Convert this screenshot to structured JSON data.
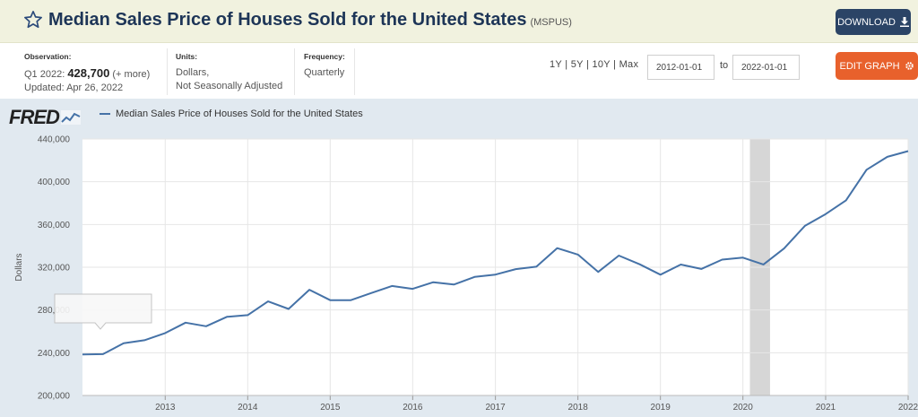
{
  "header": {
    "title": "Median Sales Price of Houses Sold for the United States",
    "series_id": "(MSPUS)",
    "download_label": "DOWNLOAD"
  },
  "observation": {
    "label": "Observation:",
    "period": "Q1 2022:",
    "value": "428,700",
    "more": "(+ more)",
    "updated": "Updated: Apr 26, 2022"
  },
  "units": {
    "label": "Units:",
    "line1": "Dollars,",
    "line2": "Not Seasonally Adjusted"
  },
  "frequency": {
    "label": "Frequency:",
    "value": "Quarterly"
  },
  "range": {
    "links": "1Y | 5Y | 10Y | Max",
    "start": "2012-01-01",
    "to_label": "to",
    "end": "2022-01-01",
    "edit_label": "EDIT GRAPH"
  },
  "chart": {
    "logo_text": "FRED",
    "legend_label": "Median Sales Price of Houses Sold for the United States"
  },
  "colors": {
    "series": "#4572a7",
    "download": "#2b4466",
    "edit": "#e8612c",
    "recession": "#d6d6d6"
  },
  "icons": {
    "favorite": "star-icon",
    "download": "download-icon",
    "settings": "gear-icon"
  },
  "chart_data": {
    "type": "line",
    "title": "",
    "xlabel": "",
    "ylabel": "Dollars",
    "ylim": [
      200000,
      440000
    ],
    "yticks": [
      200000,
      240000,
      280000,
      320000,
      360000,
      400000,
      440000
    ],
    "ytick_labels": [
      "200,000",
      "240,000",
      "280,000",
      "320,000",
      "360,000",
      "400,000",
      "440,000"
    ],
    "xlim": [
      "2012-01-01",
      "2022-01-01"
    ],
    "xticks": [
      "2013",
      "2014",
      "2015",
      "2016",
      "2017",
      "2018",
      "2019",
      "2020",
      "2021",
      "2022"
    ],
    "recession": {
      "start": "2020-02-01",
      "end": "2020-04-30"
    },
    "series": [
      {
        "name": "Median Sales Price of Houses Sold for the United States",
        "x": [
          "2012-01-01",
          "2012-04-01",
          "2012-07-01",
          "2012-10-01",
          "2013-01-01",
          "2013-04-01",
          "2013-07-01",
          "2013-10-01",
          "2014-01-01",
          "2014-04-01",
          "2014-07-01",
          "2014-10-01",
          "2015-01-01",
          "2015-04-01",
          "2015-07-01",
          "2015-10-01",
          "2016-01-01",
          "2016-04-01",
          "2016-07-01",
          "2016-10-01",
          "2017-01-01",
          "2017-04-01",
          "2017-07-01",
          "2017-10-01",
          "2018-01-01",
          "2018-04-01",
          "2018-07-01",
          "2018-10-01",
          "2019-01-01",
          "2019-04-01",
          "2019-07-01",
          "2019-10-01",
          "2020-01-01",
          "2020-04-01",
          "2020-07-01",
          "2020-10-01",
          "2021-01-01",
          "2021-04-01",
          "2021-07-01",
          "2021-10-01",
          "2022-01-01"
        ],
        "values": [
          238400,
          238700,
          248800,
          251700,
          258400,
          268100,
          264800,
          273600,
          275200,
          288000,
          281000,
          298900,
          289200,
          289100,
          295800,
          302500,
          299800,
          306000,
          303800,
          310900,
          313100,
          318200,
          320500,
          337900,
          331800,
          315600,
          330900,
          322800,
          313000,
          322500,
          318400,
          327100,
          329000,
          322600,
          337500,
          358700,
          369800,
          382600,
          411200,
          423300,
          428700
        ]
      }
    ]
  }
}
